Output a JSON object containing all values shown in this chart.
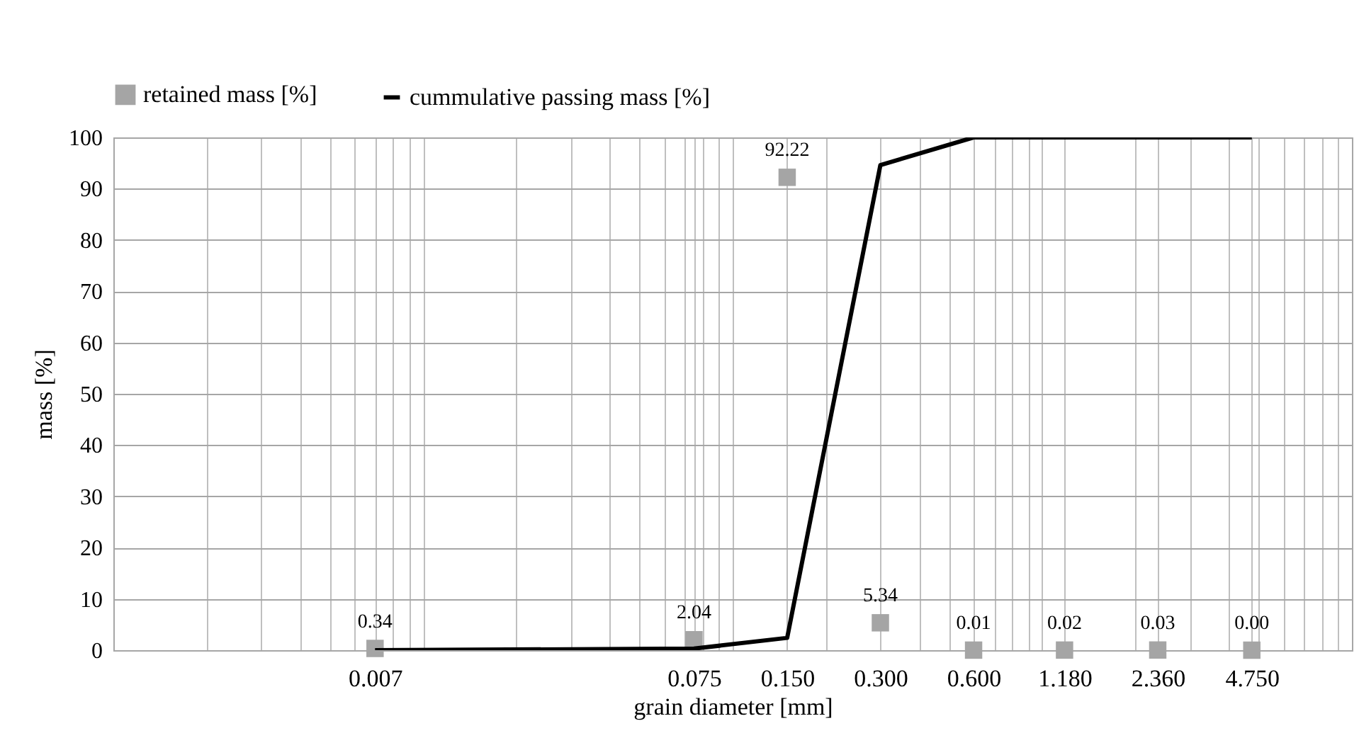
{
  "chart_data": {
    "type": "scatter",
    "xlabel": "grain diameter [mm]",
    "ylabel": "mass [%]",
    "x": [
      0.007,
      0.075,
      0.15,
      0.3,
      0.6,
      1.18,
      2.36,
      4.75
    ],
    "series": [
      {
        "name": "retained mass [%]",
        "marker": "square",
        "color": "#a5a5a5",
        "values": [
          0.34,
          2.04,
          92.22,
          5.34,
          0.01,
          0.02,
          0.03,
          0
        ],
        "value_labels": [
          "0.34",
          "2.04",
          "92.22",
          "5.34",
          "0.01",
          "0.02",
          "0.03",
          "0.00"
        ]
      },
      {
        "name": "cummulative passing mass [%]",
        "type": "line",
        "marker": "none",
        "color": "#000000",
        "values": [
          0,
          0.3,
          2.4,
          94.6,
          100,
          100,
          100,
          100
        ]
      }
    ],
    "log": "x",
    "grid": true,
    "legend": "top",
    "xlim": [
      0.001,
      10
    ],
    "ylim": [
      0,
      100
    ],
    "yticks": [
      0,
      10,
      20,
      30,
      40,
      50,
      60,
      70,
      80,
      90,
      100
    ],
    "xticks": [
      {
        "value": 0.002,
        "label": null
      },
      {
        "value": 0.003,
        "label": null
      },
      {
        "value": 0.004,
        "label": null
      },
      {
        "value": 0.005,
        "label": null
      },
      {
        "value": 0.006,
        "label": null
      },
      0.007,
      {
        "value": 0.008,
        "label": null
      },
      {
        "value": 0.009,
        "label": null
      },
      {
        "value": 0.01,
        "label": null
      },
      {
        "value": 0.02,
        "label": null
      },
      {
        "value": 0.03,
        "label": null
      },
      {
        "value": 0.04,
        "label": null
      },
      {
        "value": 0.05,
        "label": null
      },
      {
        "value": 0.06,
        "label": null
      },
      {
        "value": 0.07,
        "label": null
      },
      0.075,
      {
        "value": 0.08,
        "label": null
      },
      {
        "value": 0.09,
        "label": null
      },
      {
        "value": 0.1,
        "label": null
      },
      {
        "value": 0.15,
        "label": "0.150"
      },
      {
        "value": 0.2,
        "label": null
      },
      {
        "value": 0.3,
        "label": "0.300"
      },
      {
        "value": 0.4,
        "label": null
      },
      {
        "value": 0.5,
        "label": null
      },
      {
        "value": 0.6,
        "label": "0.600"
      },
      {
        "value": 0.7,
        "label": null
      },
      {
        "value": 0.8,
        "label": null
      },
      {
        "value": 0.9,
        "label": null
      },
      {
        "value": 1,
        "label": null
      },
      {
        "value": 1.18,
        "label": "1.180"
      },
      {
        "value": 2,
        "label": null
      },
      {
        "value": 2.36,
        "label": "2.360"
      },
      {
        "value": 3,
        "label": null
      },
      {
        "value": 4,
        "label": null
      },
      {
        "value": 4.75,
        "label": "4.750"
      },
      {
        "value": 5,
        "label": null
      },
      {
        "value": 6,
        "label": null
      },
      {
        "value": 7,
        "label": null
      },
      {
        "value": 8,
        "label": null
      },
      {
        "value": 9,
        "label": null
      }
    ]
  }
}
